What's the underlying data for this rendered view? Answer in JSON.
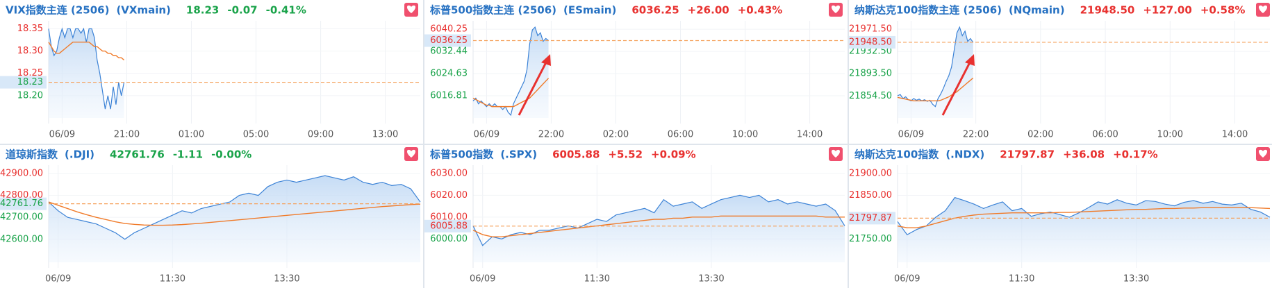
{
  "chart_data": [
    {
      "type": "line",
      "title": "VIX指数主连 (2506)",
      "code": "(VXmain)",
      "last": 18.23,
      "change": "-0.07",
      "change_pct": "-0.41%",
      "quote_color": "#1aa34a",
      "xlim": [
        0,
        138
      ],
      "xticks": [
        {
          "value": 5,
          "label": "06/09"
        },
        {
          "value": 29,
          "label": "21:00"
        },
        {
          "value": 53,
          "label": "01:00"
        },
        {
          "value": 77,
          "label": "05:00"
        },
        {
          "value": 101,
          "label": "09:00"
        },
        {
          "value": 125,
          "label": "13:00"
        }
      ],
      "ylim": [
        18.15,
        18.36
      ],
      "yticks": [
        18.35,
        {
          "value": 18.3,
          "label": "18.30"
        },
        18.25,
        {
          "value": 18.2,
          "label": "18.20"
        }
      ],
      "grid": true,
      "series": [
        {
          "color": "#3b82d6",
          "values": [
            18.35,
            18.31,
            18.29,
            18.3,
            18.33,
            18.35,
            18.33,
            18.35,
            18.35,
            18.33,
            18.35,
            18.35,
            18.34,
            18.35,
            18.32,
            18.35,
            18.35,
            18.33,
            18.28,
            18.25,
            18.21,
            18.17,
            18.2,
            18.17,
            18.22,
            18.18,
            18.23,
            18.2,
            18.23
          ]
        },
        {
          "color": "#f07b2a",
          "values": [
            18.32,
            18.31,
            18.3,
            18.295,
            18.295,
            18.3,
            18.305,
            18.31,
            18.315,
            18.32,
            18.32,
            18.32,
            18.32,
            18.32,
            18.32,
            18.32,
            18.315,
            18.31,
            18.31,
            18.305,
            18.3,
            18.3,
            18.295,
            18.295,
            18.29,
            18.29,
            18.285,
            18.285,
            18.28
          ]
        }
      ]
    },
    {
      "type": "line",
      "title": "标普500指数主连 (2506)",
      "code": "(ESmain)",
      "last": 6036.25,
      "change": "+26.00",
      "change_pct": "+0.43%",
      "quote_color": "#e8312f",
      "xlim": [
        0,
        138
      ],
      "xticks": [
        {
          "value": 5,
          "label": "06/09"
        },
        {
          "value": 29,
          "label": "22:00"
        },
        {
          "value": 53,
          "label": "02:00"
        },
        {
          "value": 77,
          "label": "06:00"
        },
        {
          "value": 101,
          "label": "10:00"
        },
        {
          "value": 125,
          "label": "14:00"
        }
      ],
      "ylim": [
        6009,
        6042
      ],
      "yticks": [
        6040.25,
        6032.44,
        6024.63,
        6016.81
      ],
      "grid": true,
      "series": [
        {
          "color": "#3b82d6",
          "values": [
            6015,
            6016,
            6014,
            6015,
            6014,
            6013,
            6014,
            6013,
            6014,
            6013,
            6013,
            6012,
            6013,
            6011,
            6010,
            6014,
            6016,
            6018,
            6020,
            6022,
            6026,
            6035,
            6040,
            6041,
            6038,
            6039,
            6036,
            6037,
            6036.25
          ]
        },
        {
          "color": "#f07b2a",
          "values": [
            6016,
            6015.5,
            6015,
            6014.5,
            6014,
            6013.5,
            6013.5,
            6013,
            6013,
            6013,
            6013,
            6013,
            6013,
            6013,
            6013,
            6013,
            6013.5,
            6014,
            6014.5,
            6015,
            6015.5,
            6016,
            6017,
            6018,
            6019,
            6020,
            6021,
            6022,
            6023
          ]
        }
      ]
    },
    {
      "type": "line",
      "title": "纳斯达克100指数主连 (2506)",
      "code": "(NQmain)",
      "last": {
        "value": 21948.5,
        "label": "21948.50"
      },
      "change": "+127.00",
      "change_pct": "+0.58%",
      "quote_color": "#e8312f",
      "xlim": [
        0,
        138
      ],
      "xticks": [
        {
          "value": 5,
          "label": "06/09"
        },
        {
          "value": 29,
          "label": "22:00"
        },
        {
          "value": 53,
          "label": "02:00"
        },
        {
          "value": 77,
          "label": "06:00"
        },
        {
          "value": 101,
          "label": "10:00"
        },
        {
          "value": 125,
          "label": "14:00"
        }
      ],
      "ylim": [
        21816,
        21980
      ],
      "yticks": [
        {
          "value": 21971.5,
          "label": "21971.50"
        },
        {
          "value": 21932.5,
          "label": "21932.50"
        },
        {
          "value": 21893.5,
          "label": "21893.50"
        },
        {
          "value": 21854.5,
          "label": "21854.50"
        }
      ],
      "grid": true,
      "series": [
        {
          "color": "#3b82d6",
          "values": [
            21855,
            21857,
            21850,
            21853,
            21848,
            21846,
            21850,
            21847,
            21849,
            21846,
            21848,
            21845,
            21847,
            21840,
            21836,
            21850,
            21858,
            21868,
            21880,
            21890,
            21905,
            21935,
            21965,
            21975,
            21960,
            21968,
            21950,
            21955,
            21948.5
          ]
        },
        {
          "color": "#f07b2a",
          "values": [
            21852,
            21851,
            21850,
            21849,
            21848,
            21847,
            21846,
            21846,
            21846,
            21846,
            21846,
            21846,
            21846,
            21846,
            21846,
            21846,
            21847,
            21849,
            21851,
            21853,
            21856,
            21859,
            21862,
            21866,
            21870,
            21874,
            21878,
            21882,
            21886
          ]
        }
      ]
    },
    {
      "type": "line",
      "title": "道琼斯指数",
      "code": "(.DJI)",
      "last": 42761.76,
      "change": "-1.11",
      "change_pct": "-0.00%",
      "quote_color": "#1aa34a",
      "xlim": [
        0,
        39
      ],
      "xticks": [
        {
          "value": 1,
          "label": "06/09"
        },
        {
          "value": 13,
          "label": "11:30"
        },
        {
          "value": 25,
          "label": "13:30"
        }
      ],
      "ylim": [
        42495,
        42922
      ],
      "yticks": [
        {
          "value": 42900,
          "label": "42900.00"
        },
        {
          "value": 42800,
          "label": "42800.00"
        },
        {
          "value": 42700,
          "label": "42700.00"
        },
        {
          "value": 42600,
          "label": "42600.00"
        }
      ],
      "grid": true,
      "series": [
        {
          "color": "#3b82d6",
          "values": [
            42770,
            42730,
            42700,
            42690,
            42680,
            42670,
            42650,
            42630,
            42600,
            42630,
            42650,
            42670,
            42690,
            42710,
            42730,
            42720,
            42740,
            42750,
            42760,
            42770,
            42800,
            42810,
            42800,
            42840,
            42860,
            42870,
            42860,
            42870,
            42880,
            42890,
            42880,
            42870,
            42885,
            42860,
            42850,
            42860,
            42845,
            42850,
            42830,
            42770
          ]
        },
        {
          "color": "#f07b2a",
          "values": [
            42770,
            42755,
            42740,
            42725,
            42712,
            42700,
            42690,
            42680,
            42672,
            42668,
            42665,
            42664,
            42664,
            42665,
            42667,
            42670,
            42673,
            42677,
            42681,
            42685,
            42689,
            42693,
            42697,
            42701,
            42705,
            42709,
            42713,
            42717,
            42721,
            42725,
            42729,
            42733,
            42737,
            42741,
            42745,
            42749,
            42752,
            42755,
            42758,
            42760
          ]
        }
      ]
    },
    {
      "type": "line",
      "title": "标普500指数",
      "code": "(.SPX)",
      "last": 6005.88,
      "change": "+5.52",
      "change_pct": "+0.09%",
      "quote_color": "#e8312f",
      "xlim": [
        0,
        39
      ],
      "xticks": [
        {
          "value": 1,
          "label": "06/09"
        },
        {
          "value": 13,
          "label": "11:30"
        },
        {
          "value": 25,
          "label": "13:30"
        }
      ],
      "ylim": [
        5989.3,
        6032.2
      ],
      "yticks": [
        {
          "value": 6030,
          "label": "6030.00"
        },
        {
          "value": 6020,
          "label": "6020.00"
        },
        {
          "value": 6010,
          "label": "6010.00"
        },
        {
          "value": 6000,
          "label": "6000.00"
        }
      ],
      "grid": true,
      "series": [
        {
          "color": "#3b82d6",
          "values": [
            6006,
            5997,
            6001,
            6000,
            6002,
            6003,
            6002,
            6004,
            6004,
            6005,
            6006,
            6005,
            6007,
            6009,
            6008,
            6011,
            6012,
            6013,
            6014,
            6012,
            6018,
            6015,
            6016,
            6017,
            6014,
            6016,
            6018,
            6019,
            6020,
            6019,
            6020,
            6017,
            6018,
            6016,
            6017,
            6016,
            6015,
            6016,
            6013,
            6006
          ]
        },
        {
          "color": "#f07b2a",
          "values": [
            6004,
            6002,
            6001,
            6001,
            6001.5,
            6002,
            6002.5,
            6003,
            6003.5,
            6004,
            6004.5,
            6005,
            6005.5,
            6006,
            6006.5,
            6007,
            6007.5,
            6008,
            6008.5,
            6009,
            6009,
            6009.5,
            6009.5,
            6010,
            6010,
            6010,
            6010.5,
            6010.5,
            6010.5,
            6010.5,
            6010.5,
            6010.5,
            6010.5,
            6010.5,
            6010.5,
            6010.5,
            6010.5,
            6010,
            6010,
            6010
          ]
        }
      ]
    },
    {
      "type": "line",
      "title": "纳斯达克100指数",
      "code": "(.NDX)",
      "last": 21797.87,
      "change": "+36.08",
      "change_pct": "+0.17%",
      "quote_color": "#e8312f",
      "xlim": [
        0,
        39
      ],
      "xticks": [
        {
          "value": 1,
          "label": "06/09"
        },
        {
          "value": 13,
          "label": "11:30"
        },
        {
          "value": 25,
          "label": "13:30"
        }
      ],
      "ylim": [
        21697,
        21911
      ],
      "yticks": [
        {
          "value": 21900,
          "label": "21900.00"
        },
        {
          "value": 21850,
          "label": "21850.00"
        },
        {
          "value": 21750,
          "label": "21750.00"
        }
      ],
      "grid": true,
      "series": [
        {
          "color": "#3b82d6",
          "values": [
            21790,
            21760,
            21772,
            21780,
            21800,
            21815,
            21845,
            21838,
            21830,
            21820,
            21828,
            21835,
            21815,
            21820,
            21802,
            21808,
            21812,
            21806,
            21800,
            21810,
            21822,
            21835,
            21830,
            21840,
            21832,
            21828,
            21838,
            21836,
            21830,
            21826,
            21834,
            21838,
            21832,
            21836,
            21830,
            21828,
            21832,
            21818,
            21812,
            21800
          ]
        },
        {
          "color": "#f07b2a",
          "values": [
            21780,
            21776,
            21776,
            21780,
            21786,
            21792,
            21798,
            21802,
            21805,
            21807,
            21808,
            21809,
            21810,
            21810,
            21810,
            21810,
            21810,
            21811,
            21811,
            21812,
            21813,
            21814,
            21815,
            21816,
            21817,
            21818,
            21818,
            21819,
            21820,
            21820,
            21821,
            21821,
            21822,
            21822,
            21822,
            21822,
            21822,
            21822,
            21821,
            21820
          ]
        }
      ]
    }
  ]
}
